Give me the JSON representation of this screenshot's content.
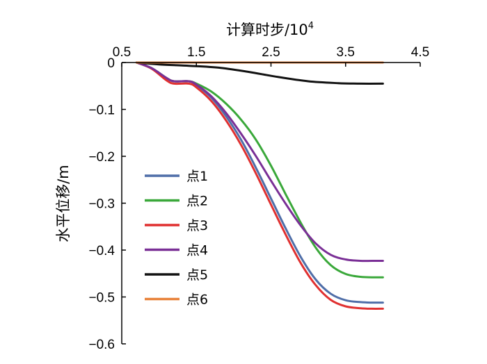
{
  "chart_data": {
    "type": "line",
    "xlabel": "计算时步/10",
    "xlabel_sup": "4",
    "ylabel": "水平位移/m",
    "xlim": [
      0.5,
      4.5
    ],
    "ylim": [
      -0.6,
      0
    ],
    "x_axis_position": "top",
    "grid": false,
    "legend_position": "left",
    "x_ticks": [
      {
        "value": 0.5,
        "label": "0.5"
      },
      {
        "value": 1.5,
        "label": "1.5"
      },
      {
        "value": 2.5,
        "label": "2.5"
      },
      {
        "value": 3.5,
        "label": "3.5"
      },
      {
        "value": 4.5,
        "label": "4.5"
      }
    ],
    "y_ticks": [
      {
        "value": 0,
        "label": "0"
      },
      {
        "value": -0.1,
        "label": "−0.1"
      },
      {
        "value": -0.2,
        "label": "−0.2"
      },
      {
        "value": -0.3,
        "label": "−0.3"
      },
      {
        "value": -0.4,
        "label": "−0.4"
      },
      {
        "value": -0.5,
        "label": "−0.5"
      },
      {
        "value": -0.6,
        "label": "−0.6"
      }
    ],
    "series": [
      {
        "name": "点1",
        "color": "#4f6ea8",
        "x": [
          0.7,
          0.9,
          1.1,
          1.2,
          1.4,
          1.5,
          1.7,
          1.9,
          2.1,
          2.3,
          2.5,
          2.7,
          2.9,
          3.1,
          3.3,
          3.5,
          3.7,
          3.85,
          4.0
        ],
        "y": [
          0,
          -0.012,
          -0.033,
          -0.04,
          -0.04,
          -0.048,
          -0.075,
          -0.115,
          -0.165,
          -0.225,
          -0.29,
          -0.355,
          -0.415,
          -0.463,
          -0.493,
          -0.507,
          -0.511,
          -0.512,
          -0.512
        ]
      },
      {
        "name": "点2",
        "color": "#3aa83a",
        "x": [
          0.7,
          0.9,
          1.1,
          1.2,
          1.4,
          1.5,
          1.7,
          1.9,
          2.1,
          2.3,
          2.5,
          2.7,
          2.9,
          3.1,
          3.3,
          3.5,
          3.7,
          3.85,
          4.0
        ],
        "y": [
          0,
          -0.012,
          -0.033,
          -0.04,
          -0.04,
          -0.045,
          -0.062,
          -0.088,
          -0.122,
          -0.165,
          -0.22,
          -0.282,
          -0.342,
          -0.395,
          -0.432,
          -0.451,
          -0.457,
          -0.458,
          -0.458
        ]
      },
      {
        "name": "点3",
        "color": "#e03030",
        "x": [
          0.7,
          0.9,
          1.1,
          1.2,
          1.4,
          1.5,
          1.7,
          1.9,
          2.1,
          2.3,
          2.5,
          2.7,
          2.9,
          3.1,
          3.3,
          3.5,
          3.7,
          3.85,
          4.0
        ],
        "y": [
          0,
          -0.013,
          -0.038,
          -0.045,
          -0.045,
          -0.053,
          -0.082,
          -0.124,
          -0.176,
          -0.237,
          -0.303,
          -0.368,
          -0.428,
          -0.475,
          -0.506,
          -0.52,
          -0.524,
          -0.525,
          -0.525
        ]
      },
      {
        "name": "点4",
        "color": "#7a2f96",
        "x": [
          0.7,
          0.9,
          1.1,
          1.2,
          1.4,
          1.5,
          1.7,
          1.9,
          2.1,
          2.3,
          2.5,
          2.7,
          2.9,
          3.1,
          3.3,
          3.5,
          3.7,
          3.85,
          4.0
        ],
        "y": [
          0,
          -0.012,
          -0.033,
          -0.04,
          -0.04,
          -0.047,
          -0.072,
          -0.108,
          -0.152,
          -0.2,
          -0.252,
          -0.302,
          -0.348,
          -0.386,
          -0.41,
          -0.42,
          -0.423,
          -0.423,
          -0.423
        ]
      },
      {
        "name": "点5",
        "color": "#111111",
        "x": [
          0.7,
          1.0,
          1.4,
          1.8,
          2.2,
          2.6,
          3.0,
          3.4,
          3.7,
          4.0
        ],
        "y": [
          0,
          -0.004,
          -0.007,
          -0.011,
          -0.02,
          -0.031,
          -0.04,
          -0.044,
          -0.045,
          -0.045
        ]
      },
      {
        "name": "点6",
        "color": "#e8823a",
        "x": [
          0.7,
          4.0
        ],
        "y": [
          0,
          0
        ]
      }
    ]
  }
}
